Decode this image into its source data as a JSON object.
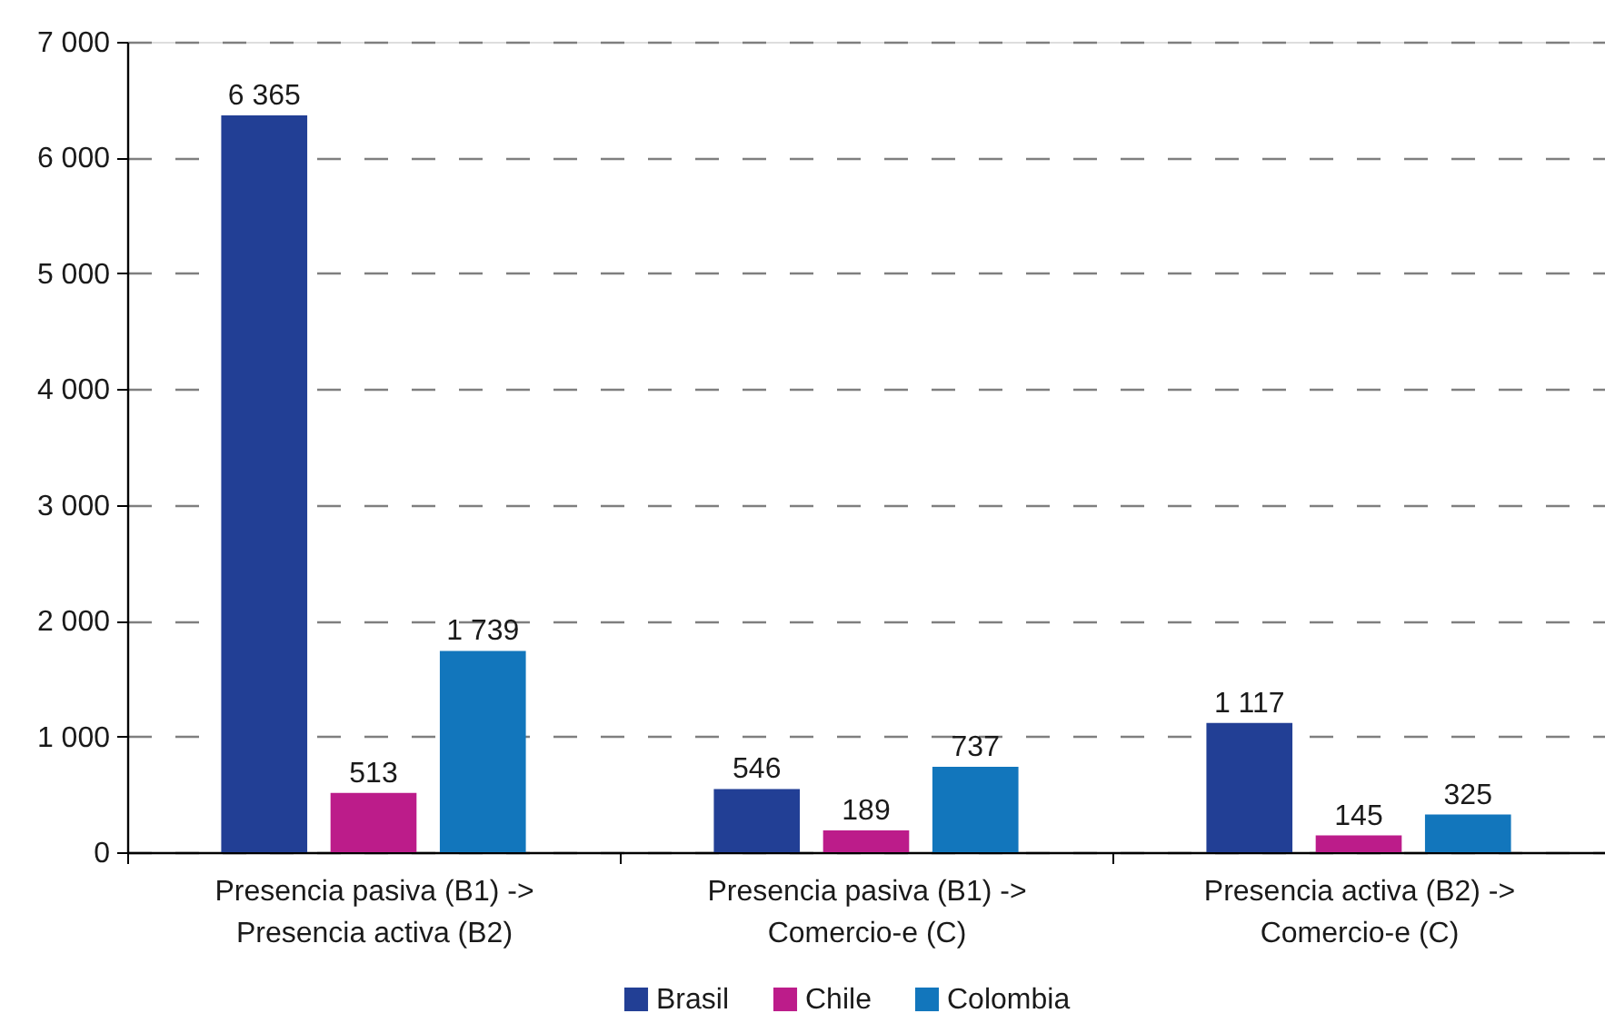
{
  "chart_data": {
    "type": "bar",
    "categories": [
      "Presencia pasiva (B1) ->\nPresencia activa (B2)",
      "Presencia pasiva (B1) ->\nComercio-e (C)",
      "Presencia activa (B2) ->\nComercio-e (C)"
    ],
    "series": [
      {
        "name": "Brasil",
        "color": "#223f95",
        "values": [
          6365,
          546,
          1117
        ],
        "value_labels": [
          "6 365",
          "546",
          "1 117"
        ]
      },
      {
        "name": "Chile",
        "color": "#bc1c8a",
        "values": [
          513,
          189,
          145
        ],
        "value_labels": [
          "513",
          "189",
          "145"
        ]
      },
      {
        "name": "Colombia",
        "color": "#1276bc",
        "values": [
          1739,
          737,
          325
        ],
        "value_labels": [
          "1 739",
          "737",
          "325"
        ]
      }
    ],
    "ylim": [
      0,
      7000
    ],
    "yticks": [
      0,
      {
        "value": 1000,
        "label": "1 000"
      },
      {
        "value": 2000,
        "label": "2 000"
      },
      {
        "value": 3000,
        "label": "3 000"
      },
      {
        "value": 4000,
        "label": "4 000"
      },
      {
        "value": 5000,
        "label": "5 000"
      },
      {
        "value": 6000,
        "label": "6 000"
      },
      {
        "value": 7000,
        "label": "7 000"
      }
    ],
    "grid": "y",
    "legend": "bottom"
  }
}
